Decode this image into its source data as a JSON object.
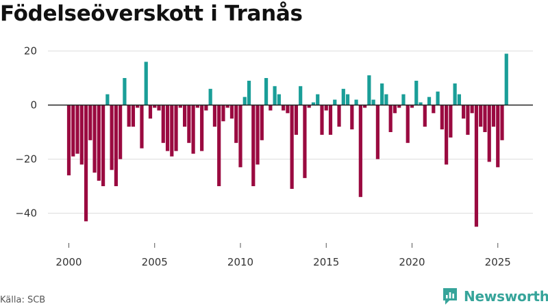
{
  "title": "Födelseöverskott i Tranås",
  "source": "Källa: SCB",
  "brand": {
    "name": "Newsworthy",
    "icon": "newsworthy-logo-icon"
  },
  "colors": {
    "positive": "#1a9e98",
    "negative": "#9a0a40",
    "zero_line": "#222222",
    "grid": "#dddddd",
    "brand": "#36a49a"
  },
  "chart_data": {
    "type": "bar",
    "frequency": "quarterly",
    "title": "Födelseöverskott i Tranås",
    "xlabel": "",
    "ylabel": "",
    "ylim": [
      -50,
      23
    ],
    "xlim": [
      2000,
      2027
    ],
    "yticks": [
      20,
      0,
      -20,
      -40
    ],
    "ytick_labels": [
      "20",
      "0",
      "−20",
      "−40"
    ],
    "xticks": [
      2000,
      2005,
      2010,
      2015,
      2020,
      2025
    ],
    "grid": "horizontal",
    "first_period": "2000 Q1",
    "values": [
      -26,
      -19,
      -18,
      -22,
      -43,
      -13,
      -25,
      -28,
      -30,
      4,
      -24,
      -30,
      -20,
      10,
      -8,
      -8,
      -1,
      -16,
      16,
      -5,
      -1,
      -2,
      -14,
      -17,
      -19,
      -17,
      -1,
      -8,
      -14,
      -18,
      -1,
      -17,
      -2,
      6,
      -8,
      -30,
      -6,
      -1,
      -5,
      -14,
      -23,
      3,
      9,
      -30,
      -22,
      -13,
      10,
      -2,
      7,
      4,
      -2,
      -3,
      -31,
      -11,
      7,
      -27,
      -1,
      1,
      4,
      -11,
      -2,
      -11,
      2,
      -8,
      6,
      4,
      -9,
      2,
      -34,
      -1,
      11,
      2,
      -20,
      8,
      4,
      -10,
      -3,
      -1,
      4,
      -14,
      -1,
      9,
      1,
      -8,
      3,
      -3,
      5,
      -9,
      -22,
      -12,
      8,
      4,
      -5,
      -11,
      -3,
      -45,
      -8,
      -10,
      -21,
      -8,
      -23,
      -13,
      19
    ]
  }
}
